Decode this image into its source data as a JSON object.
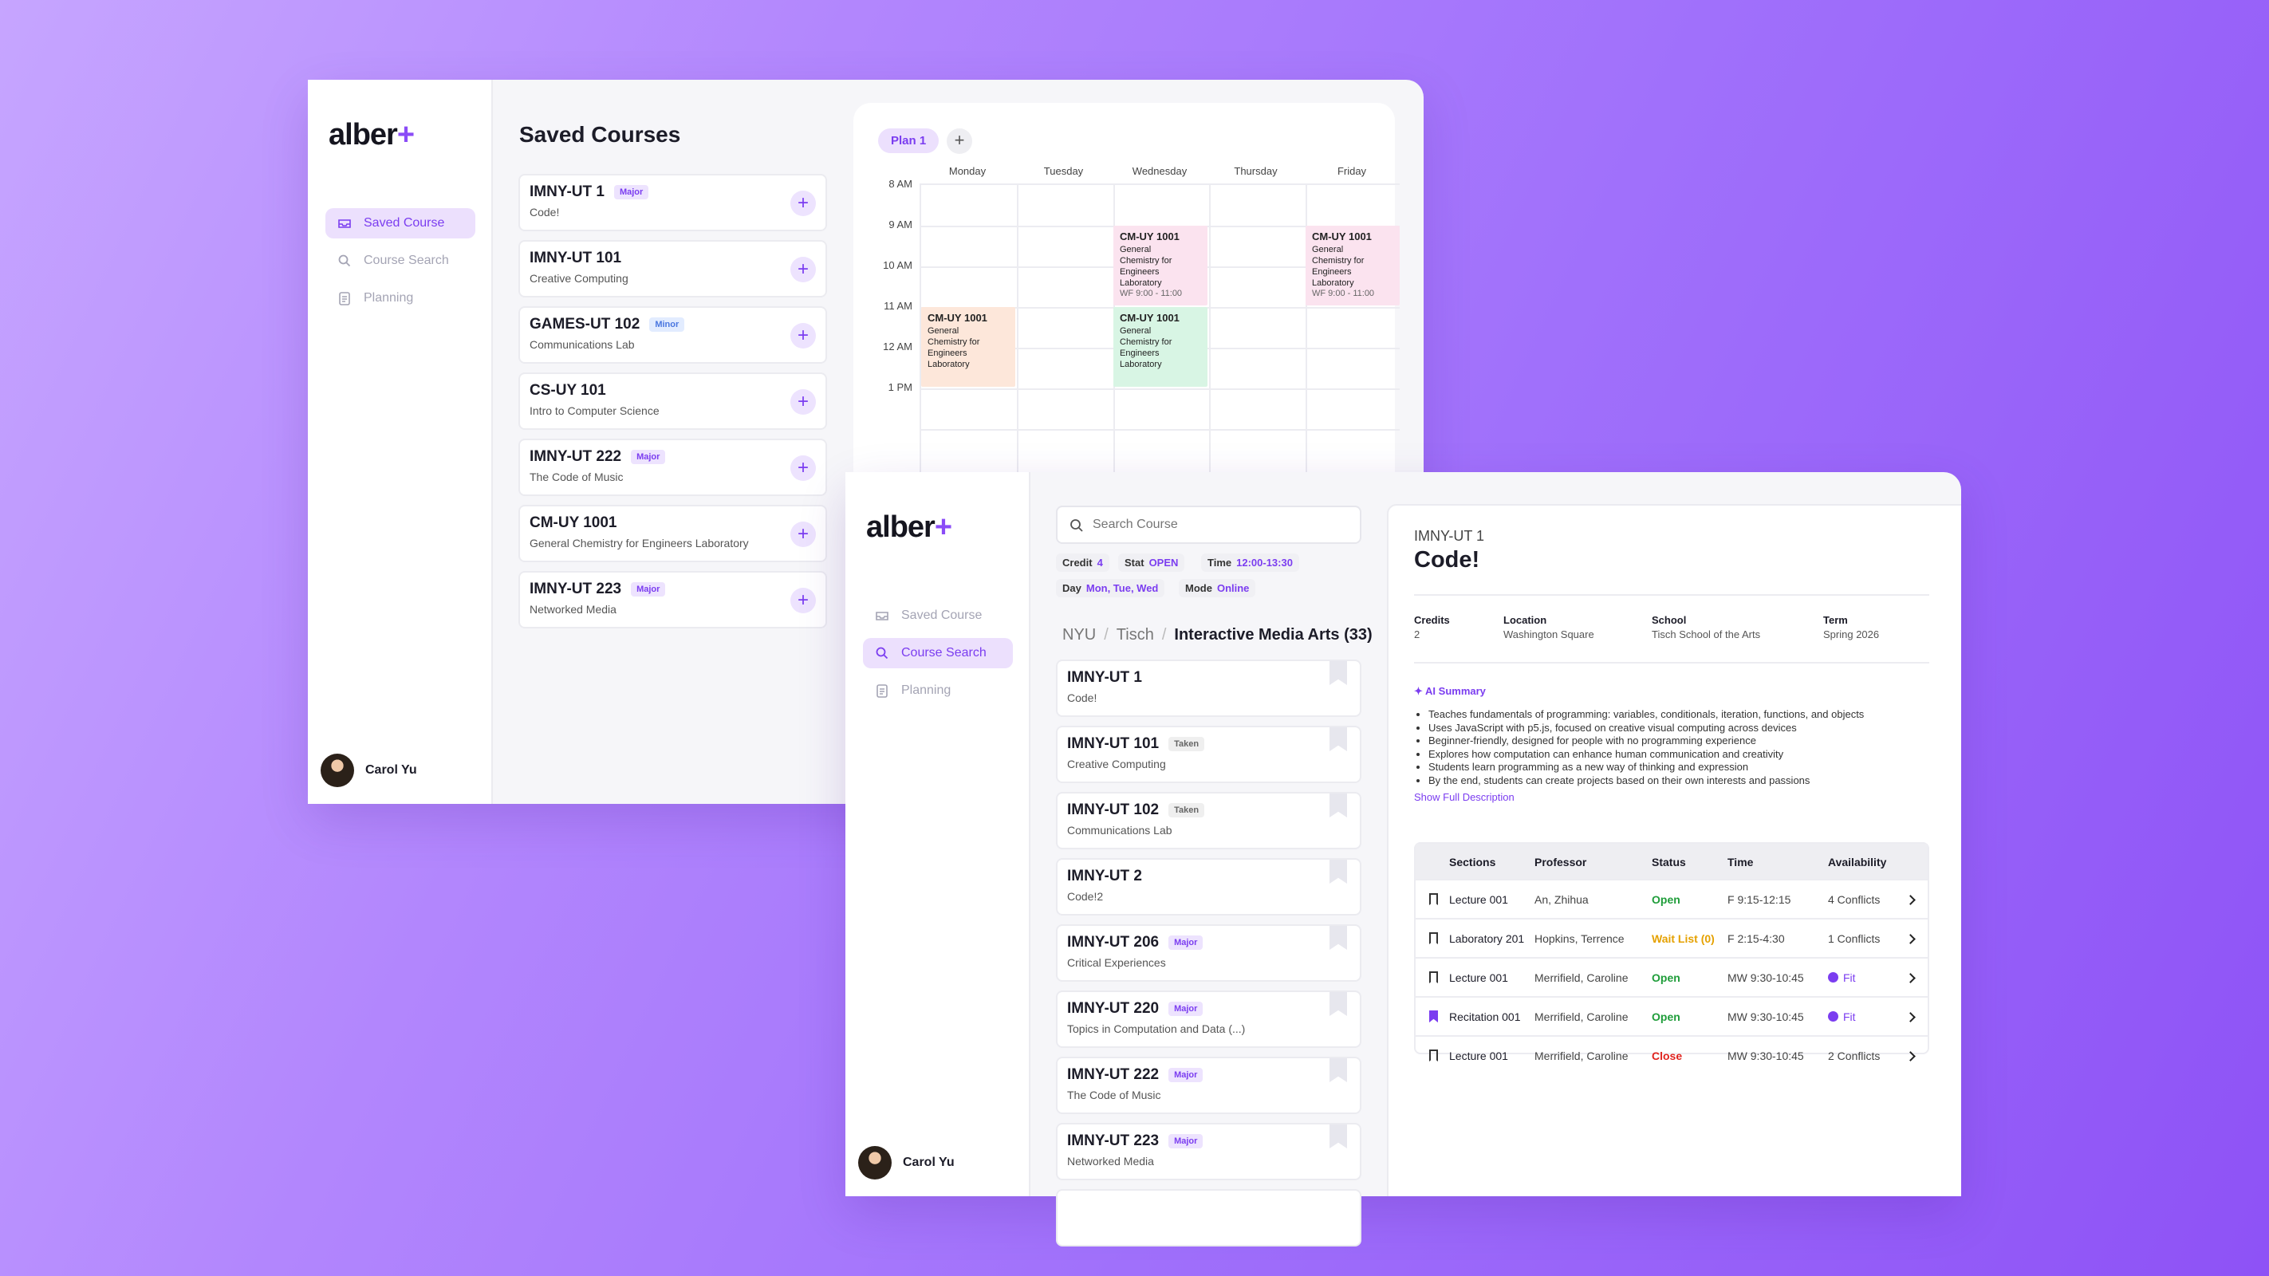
{
  "window1": {
    "brand": {
      "main": "alber",
      "accent": "+"
    },
    "nav": [
      {
        "label": "Saved Course",
        "icon": "inbox-icon",
        "active": true
      },
      {
        "label": "Course Search",
        "icon": "search-icon",
        "active": false
      },
      {
        "label": "Planning",
        "icon": "clipboard-icon",
        "active": false
      }
    ],
    "user": "Carol Yu",
    "title": "Saved Courses",
    "courses": [
      {
        "code": "IMNY-UT 1",
        "badge": "Major",
        "name": "Code!"
      },
      {
        "code": "IMNY-UT 101",
        "badge": "",
        "name": "Creative Computing"
      },
      {
        "code": "GAMES-UT 102",
        "badge": "Minor",
        "name": "Communications Lab"
      },
      {
        "code": "CS-UY 101",
        "badge": "",
        "name": "Intro to Computer Science"
      },
      {
        "code": "IMNY-UT 222",
        "badge": "Major",
        "name": "The Code of Music"
      },
      {
        "code": "CM-UY 1001",
        "badge": "",
        "name": "General Chemistry for Engineers Laboratory"
      },
      {
        "code": "IMNY-UT 223",
        "badge": "Major",
        "name": "Networked Media"
      }
    ],
    "calendar": {
      "plan_tab": "Plan 1",
      "add_label": "+",
      "days": [
        "Monday",
        "Tuesday",
        "Wednesday",
        "Thursday",
        "Friday"
      ],
      "times": [
        "8 AM",
        "9 AM",
        "10 AM",
        "11 AM",
        "12 AM",
        "1 PM"
      ],
      "events": [
        {
          "code": "CM-UY 1001",
          "name": "General Chemistry for Engineers Laboratory",
          "time": "WF 9:00 - 11:00",
          "color": "#fbe3ef"
        },
        {
          "code": "CM-UY 1001",
          "name": "General Chemistry for Engineers Laboratory",
          "time": "WF 9:00 - 11:00",
          "color": "#fbe3ef"
        },
        {
          "code": "CM-UY 1001",
          "name": "General Chemistry for Engineers Laboratory",
          "time": "",
          "color": "#fde7da"
        },
        {
          "code": "CM-UY 1001",
          "name": "General Chemistry for Engineers Laboratory",
          "time": "",
          "color": "#d8f5e4"
        }
      ]
    }
  },
  "window2": {
    "brand": {
      "main": "alber",
      "accent": "+"
    },
    "nav": [
      {
        "label": "Saved Course",
        "icon": "inbox-icon",
        "active": false
      },
      {
        "label": "Course Search",
        "icon": "search-icon",
        "active": true
      },
      {
        "label": "Planning",
        "icon": "clipboard-icon",
        "active": false
      }
    ],
    "user": "Carol Yu",
    "search_placeholder": "Search Course",
    "filters": [
      {
        "key": "Credit",
        "value": "4"
      },
      {
        "key": "Stat",
        "value": "OPEN"
      },
      {
        "key": "Time",
        "value": "12:00-13:30"
      },
      {
        "key": "Day",
        "value": "Mon, Tue, Wed"
      },
      {
        "key": "Mode",
        "value": "Online"
      }
    ],
    "breadcrumb": [
      "NYU",
      "/",
      "Tisch",
      "/",
      "Interactive Media Arts (33)"
    ],
    "results": [
      {
        "code": "IMNY-UT 1",
        "badge": "",
        "name": "Code!"
      },
      {
        "code": "IMNY-UT 101",
        "badge": "Taken",
        "name": "Creative Computing"
      },
      {
        "code": "IMNY-UT 102",
        "badge": "Taken",
        "name": "Communications Lab"
      },
      {
        "code": "IMNY-UT 2",
        "badge": "",
        "name": "Code!2"
      },
      {
        "code": "IMNY-UT 206",
        "badge": "Major",
        "name": "Critical Experiences"
      },
      {
        "code": "IMNY-UT 220",
        "badge": "Major",
        "name": "Topics in Computation and Data (...)"
      },
      {
        "code": "IMNY-UT 222",
        "badge": "Major",
        "name": "The Code of Music"
      },
      {
        "code": "IMNY-UT 223",
        "badge": "Major",
        "name": "Networked Media"
      }
    ],
    "detail": {
      "code": "IMNY-UT 1",
      "title": "Code!",
      "meta": [
        {
          "label": "Credits",
          "value": "2"
        },
        {
          "label": "Location",
          "value": "Washington Square"
        },
        {
          "label": "School",
          "value": "Tisch School of the Arts"
        },
        {
          "label": "Term",
          "value": "Spring 2026"
        }
      ],
      "ai_label": "AI Summary",
      "summary": [
        "Teaches fundamentals of programming: variables, conditionals, iteration, functions, and objects",
        "Uses JavaScript with p5.js, focused on creative visual computing across devices",
        "Beginner-friendly, designed for people with no programming experience",
        "Explores how computation can enhance human communication and creativity",
        "Students learn programming as a new way of thinking and expression",
        "By the end, students can create projects based on their own interests and passions"
      ],
      "show_more": "Show Full Description",
      "table_headers": [
        "Sections",
        "Professor",
        "Status",
        "Time",
        "Availability"
      ],
      "sections": [
        {
          "section": "Lecture 001",
          "professor": "An, Zhihua",
          "status": "Open",
          "status_color": "#1f9d3a",
          "time": "F 9:15-12:15",
          "availability": "4 Conflicts",
          "fit": false,
          "saved": false
        },
        {
          "section": "Laboratory 201",
          "professor": "Hopkins, Terrence",
          "status": "Wait List (0)",
          "status_color": "#e5a100",
          "time": "F 2:15-4:30",
          "availability": "1 Conflicts",
          "fit": false,
          "saved": false
        },
        {
          "section": "Lecture 001",
          "professor": "Merrifield, Caroline",
          "status": "Open",
          "status_color": "#1f9d3a",
          "time": "MW 9:30-10:45",
          "availability": "Fit",
          "fit": true,
          "saved": false
        },
        {
          "section": "Recitation 001",
          "professor": "Merrifield, Caroline",
          "status": "Open",
          "status_color": "#1f9d3a",
          "time": "MW 9:30-10:45",
          "availability": "Fit",
          "fit": true,
          "saved": true
        },
        {
          "section": "Lecture 001",
          "professor": "Merrifield, Caroline",
          "status": "Close",
          "status_color": "#e0241f",
          "time": "MW 9:30-10:45",
          "availability": "2 Conflicts",
          "fit": false,
          "saved": false
        }
      ]
    }
  }
}
